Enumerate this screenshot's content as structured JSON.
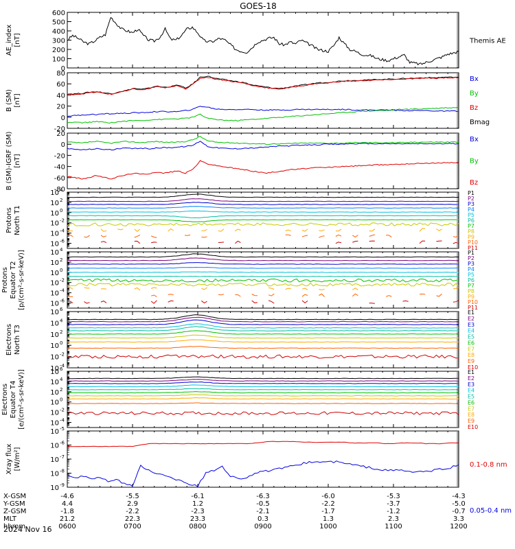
{
  "title": "GOES-18",
  "date_label": "2024 Nov 16",
  "colors": {
    "black": "#000000",
    "red": "#e00000",
    "green": "#00c000",
    "blue": "#0000e0",
    "p1": "#000000",
    "p2": "#7a007a",
    "p3": "#0000d0",
    "p4": "#0080ff",
    "p5": "#00c0e0",
    "p6": "#00c0a0",
    "p7": "#00c000",
    "p8": "#c8c800",
    "p9": "#ffaa00",
    "p10": "#ff6000",
    "p11": "#d00000"
  },
  "chart_data": [
    {
      "type": "line",
      "ylabel": "AE_index\n[nT]",
      "ylim": [
        0,
        600
      ],
      "yticks": [
        "0",
        "100",
        "200",
        "300",
        "400",
        "500",
        "600"
      ],
      "legend": [
        {
          "label": "Themis AE",
          "color": "#000000"
        }
      ],
      "series": [
        {
          "name": "Themis AE",
          "color": "#000000",
          "values": [
            300,
            350,
            320,
            280,
            260,
            290,
            330,
            360,
            550,
            480,
            420,
            400,
            380,
            420,
            350,
            300,
            290,
            330,
            420,
            310,
            300,
            350,
            420,
            440,
            380,
            300,
            280,
            290,
            320,
            300,
            250,
            200,
            180,
            170,
            220,
            280,
            300,
            320,
            330,
            260,
            250,
            280,
            260,
            300,
            270,
            240,
            200,
            190,
            180,
            240,
            330,
            260,
            200,
            180,
            150,
            140,
            130,
            100,
            90,
            80,
            100,
            120,
            140,
            60,
            50,
            40,
            60,
            80,
            100,
            120,
            150,
            160,
            180
          ]
        }
      ]
    },
    {
      "type": "line",
      "ylabel": "B (SM)\n[nT]",
      "ylim": [
        -20,
        80
      ],
      "yticks": [
        "-20",
        "0",
        "20",
        "40",
        "60",
        "80"
      ],
      "legend": [
        {
          "label": "Bx",
          "color": "#0000e0"
        },
        {
          "label": "By",
          "color": "#00c000"
        },
        {
          "label": "Bz",
          "color": "#e00000"
        },
        {
          "label": "Bmag",
          "color": "#000000"
        }
      ],
      "series": [
        {
          "name": "Bmag",
          "color": "#000000",
          "values": [
            42,
            42,
            43,
            45,
            46,
            44,
            42,
            46,
            48,
            52,
            50,
            52,
            56,
            54,
            55,
            58,
            52,
            60,
            72,
            74,
            70,
            68,
            66,
            64,
            62,
            58,
            56,
            54,
            52,
            52,
            54,
            56,
            58,
            60,
            62,
            62,
            64,
            65,
            66,
            66,
            67,
            67,
            68,
            68,
            69,
            69,
            70,
            70,
            71,
            71,
            71,
            72,
            72,
            72
          ]
        },
        {
          "name": "Bz",
          "color": "#e00000",
          "values": [
            41,
            41,
            42,
            44,
            45,
            43,
            41,
            45,
            47,
            51,
            49,
            51,
            55,
            53,
            54,
            57,
            51,
            59,
            70,
            72,
            69,
            67,
            65,
            63,
            61,
            57,
            55,
            53,
            51,
            51,
            53,
            55,
            57,
            59,
            61,
            61,
            63,
            64,
            65,
            65,
            66,
            66,
            67,
            67,
            68,
            68,
            69,
            69,
            70,
            70,
            70,
            71,
            71,
            71
          ]
        },
        {
          "name": "Bx",
          "color": "#0000e0",
          "values": [
            2,
            3,
            4,
            5,
            5,
            6,
            6,
            7,
            7,
            8,
            8,
            9,
            10,
            10,
            10,
            10,
            12,
            14,
            20,
            18,
            15,
            14,
            14,
            14,
            14,
            14,
            13,
            13,
            13,
            13,
            13,
            14,
            14,
            14,
            14,
            14,
            14,
            14,
            14,
            13,
            13,
            13,
            13,
            13,
            13,
            12,
            12,
            12,
            12,
            12,
            11,
            11,
            11,
            11
          ]
        },
        {
          "name": "By",
          "color": "#00c000",
          "values": [
            -10,
            -9,
            -10,
            -9,
            -8,
            -9,
            -10,
            -8,
            -7,
            -6,
            -6,
            -5,
            -4,
            -4,
            -3,
            -3,
            -2,
            0,
            5,
            -2,
            -4,
            -5,
            -6,
            -6,
            -5,
            -4,
            -3,
            -2,
            -1,
            0,
            1,
            2,
            3,
            4,
            5,
            6,
            7,
            8,
            9,
            10,
            11,
            11,
            12,
            12,
            13,
            14,
            14,
            15,
            15,
            16,
            16,
            17,
            17,
            18
          ]
        }
      ]
    },
    {
      "type": "line",
      "ylabel": "B (SM)-IGRF (SM)\n[nT]",
      "ylim": [
        -80,
        20
      ],
      "yticks": [
        "-80",
        "-60",
        "-40",
        "-20",
        "0",
        "20"
      ],
      "legend": [
        {
          "label": "Bx",
          "color": "#0000e0"
        },
        {
          "label": "By",
          "color": "#00c000"
        },
        {
          "label": "Bz",
          "color": "#e00000"
        }
      ],
      "series": [
        {
          "name": "By",
          "color": "#00c000",
          "values": [
            4,
            3,
            2,
            4,
            5,
            3,
            2,
            4,
            5,
            4,
            3,
            4,
            5,
            4,
            3,
            4,
            5,
            8,
            14,
            6,
            4,
            3,
            3,
            2,
            2,
            1,
            1,
            0,
            1,
            1,
            1,
            2,
            2,
            2,
            2,
            2,
            2,
            2,
            2,
            3,
            3,
            3,
            3,
            3,
            3,
            3,
            3,
            4,
            4,
            4,
            4,
            4,
            4,
            4
          ]
        },
        {
          "name": "Bx",
          "color": "#0000e0",
          "values": [
            -8,
            -9,
            -10,
            -9,
            -8,
            -9,
            -10,
            -8,
            -7,
            -8,
            -7,
            -8,
            -7,
            -6,
            -6,
            -5,
            -4,
            -2,
            6,
            -4,
            -6,
            -7,
            -8,
            -8,
            -7,
            -7,
            -6,
            -5,
            -4,
            -3,
            -3,
            -2,
            -2,
            -1,
            -1,
            0,
            0,
            0,
            1,
            1,
            1,
            1,
            1,
            1,
            1,
            1,
            1,
            1,
            1,
            1,
            1,
            1,
            1,
            1
          ]
        },
        {
          "name": "Bz",
          "color": "#e00000",
          "values": [
            -58,
            -60,
            -62,
            -60,
            -56,
            -60,
            -62,
            -58,
            -55,
            -52,
            -54,
            -53,
            -50,
            -52,
            -50,
            -48,
            -52,
            -45,
            -30,
            -35,
            -38,
            -40,
            -42,
            -44,
            -46,
            -48,
            -50,
            -52,
            -50,
            -48,
            -46,
            -45,
            -44,
            -43,
            -42,
            -42,
            -41,
            -40,
            -40,
            -39,
            -38,
            -38,
            -37,
            -37,
            -36,
            -36,
            -35,
            -35,
            -34,
            -34,
            -34,
            -33,
            -33,
            -33
          ]
        }
      ]
    },
    {
      "type": "line",
      "log": true,
      "ylabel": "Protons\nNorth T1",
      "ylim_exp": [
        -7,
        4
      ],
      "yticks_exp": [
        -6,
        -4,
        -2,
        0,
        2,
        4
      ],
      "legend_labels": [
        "P1",
        "P2",
        "P3",
        "P4",
        "P5",
        "P6",
        "P7",
        "P8",
        "P9",
        "P10",
        "P11"
      ],
      "levels_exp": [
        3.0,
        2.2,
        1.6,
        0.9,
        0.1,
        -0.6,
        -1.4,
        -2.3,
        -3.4,
        -4.6,
        -5.8
      ],
      "bump_exp": [
        0.6,
        0.5,
        0.4,
        0.3,
        0.2,
        -0.4,
        -0.4,
        0,
        0,
        0,
        0
      ]
    },
    {
      "type": "line",
      "log": true,
      "ylabel": "Protons\nEquator T2\n[p/(cm²-s-sr-keV)]",
      "ylim_exp": [
        -7,
        4
      ],
      "yticks_exp": [
        -6,
        -4,
        -2,
        0,
        2,
        4
      ],
      "legend_labels": [
        "P1",
        "P2",
        "P3",
        "P4",
        "P5",
        "P6",
        "P7",
        "P8",
        "P9",
        "P10",
        "P11"
      ],
      "levels_exp": [
        3.0,
        2.3,
        1.6,
        0.8,
        0.0,
        -0.8,
        -1.6,
        -2.4,
        -3.2,
        -4.5,
        -5.8
      ],
      "bump_exp": [
        0.6,
        0.5,
        0.3,
        0.2,
        0.1,
        0,
        0,
        0,
        0,
        0,
        0
      ]
    },
    {
      "type": "line",
      "log": true,
      "ylabel": "Electrons\nNorth T3",
      "ylim_exp": [
        -4,
        6
      ],
      "yticks_exp": [
        -4,
        -2,
        0,
        2,
        4,
        6
      ],
      "legend_labels": [
        "E1",
        "E2",
        "E3",
        "E4",
        "E5",
        "E6",
        "E7",
        "E8",
        "E9",
        "E10"
      ],
      "levels_exp": [
        4.6,
        4.2,
        3.7,
        3.1,
        2.6,
        2.0,
        1.3,
        0.6,
        -0.5,
        -2.0
      ],
      "bump_exp": [
        0.8,
        0.8,
        0.8,
        0.7,
        0.7,
        0.6,
        0.5,
        0.4,
        0.3,
        0
      ]
    },
    {
      "type": "line",
      "log": true,
      "ylabel": "Electrons\nEquator T4\n[e/(cm²-s-sr-keV)]",
      "ylim_exp": [
        -5,
        6
      ],
      "yticks_exp": [
        -4,
        -2,
        0,
        2,
        4,
        6
      ],
      "legend_labels": [
        "E1",
        "E2",
        "E3",
        "E4",
        "E5",
        "E6",
        "E7",
        "E8",
        "E9",
        "E10"
      ],
      "levels_exp": [
        4.6,
        4.1,
        3.6,
        3.0,
        2.4,
        1.8,
        1.2,
        0.6,
        -0.3,
        -2.2
      ],
      "bump_exp": [
        0.3,
        0.3,
        0.3,
        0.3,
        0.2,
        0.2,
        0.2,
        0.2,
        0.1,
        0
      ]
    },
    {
      "type": "line",
      "log": true,
      "ylabel": "Xray flux\n[W/m²]",
      "ylim_exp": [
        -9,
        -5
      ],
      "yticks_exp": [
        -9,
        -8,
        -7,
        -6,
        -5
      ],
      "legend": [
        {
          "label": "0.1-0.8 nm",
          "color": "#e00000"
        },
        {
          "label": "0.05-0.4 nm",
          "color": "#0000e0"
        }
      ],
      "series": [
        {
          "name": "0.1-0.8 nm",
          "color": "#e00000",
          "values_exp": [
            -6.1,
            -6.1,
            -6.1,
            -6.1,
            -6.1,
            -6.1,
            -6.1,
            -6.1,
            -6.1,
            -6.0,
            -5.9,
            -5.9,
            -5.9,
            -5.9,
            -5.9,
            -5.9,
            -5.9,
            -5.9,
            -5.9,
            -5.9,
            -5.9,
            -5.9,
            -5.9,
            -5.85,
            -5.8,
            -5.75,
            -5.75,
            -5.75,
            -5.75,
            -5.8,
            -5.8,
            -5.8,
            -5.8,
            -5.8,
            -5.8,
            -5.85,
            -5.85,
            -5.85,
            -5.85,
            -5.9,
            -5.9,
            -5.85,
            -5.85,
            -5.85,
            -5.9,
            -5.9,
            -5.9,
            -5.85,
            -5.85
          ]
        },
        {
          "name": "0.05-0.4 nm",
          "color": "#0000e0",
          "values_exp": [
            -8.1,
            -8.3,
            -8.2,
            -8.4,
            -8.3,
            -8.6,
            -8.5,
            -8.7,
            -8.9,
            -7.5,
            -7.8,
            -8.0,
            -8.2,
            -8.4,
            -8.5,
            -8.8,
            -8.9,
            -8.0,
            -7.8,
            -7.5,
            -8.2,
            -8.4,
            -8.3,
            -8.0,
            -7.9,
            -7.8,
            -7.7,
            -7.6,
            -7.4,
            -7.3,
            -7.2,
            -7.2,
            -7.2,
            -7.2,
            -7.3,
            -7.4,
            -7.5,
            -7.6,
            -7.7,
            -7.8,
            -7.8,
            -7.8,
            -7.9,
            -7.9,
            -7.9,
            -7.8,
            -7.7,
            -7.6,
            -7.4
          ]
        }
      ]
    }
  ],
  "x_axis": {
    "row_labels": [
      "X-GSM",
      "Y-GSM",
      "Z-GSM",
      "MLT",
      "hhmm"
    ],
    "columns": [
      {
        "vals": [
          "-4.6",
          "4.4",
          "-1.8",
          "21.2",
          "0600"
        ]
      },
      {
        "vals": [
          "-5.5",
          "2.9",
          "-2.2",
          "22.3",
          "0700"
        ]
      },
      {
        "vals": [
          "-6.1",
          "1.2",
          "-2.3",
          "23.3",
          "0800"
        ]
      },
      {
        "vals": [
          "-6.3",
          "-0.5",
          "-2.1",
          "0.3",
          "0900"
        ]
      },
      {
        "vals": [
          "-6.0",
          "-2.2",
          "-1.7",
          "1.3",
          "1000"
        ]
      },
      {
        "vals": [
          "-5.3",
          "-3.7",
          "-1.2",
          "2.3",
          "1100"
        ]
      },
      {
        "vals": [
          "-4.3",
          "-5.0",
          "-0.7",
          "3.3",
          "1200"
        ]
      }
    ]
  }
}
